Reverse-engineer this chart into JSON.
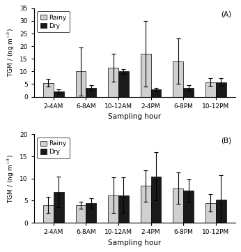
{
  "categories": [
    "2-4AM",
    "6-8AM",
    "10-12AM",
    "2-4PM",
    "6-8PM",
    "10-12PM"
  ],
  "subplot_A": {
    "label": "(A)",
    "rainy_values": [
      5.5,
      10.0,
      11.5,
      17.0,
      14.0,
      5.8
    ],
    "dry_values": [
      2.0,
      3.5,
      10.0,
      3.0,
      3.5,
      5.8
    ],
    "rainy_errors": [
      1.5,
      9.5,
      5.5,
      13.0,
      9.0,
      1.5
    ],
    "dry_errors": [
      0.8,
      1.0,
      1.0,
      0.5,
      1.0,
      1.5
    ],
    "ylim": [
      0,
      35
    ],
    "yticks": [
      0,
      5,
      10,
      15,
      20,
      25,
      30,
      35
    ],
    "ylabel": "TGM / (ng m-3)"
  },
  "subplot_B": {
    "label": "(B)",
    "rainy_values": [
      4.0,
      4.0,
      6.2,
      8.3,
      7.8,
      4.5
    ],
    "dry_values": [
      7.0,
      4.4,
      6.2,
      10.5,
      7.3,
      5.2
    ],
    "rainy_errors": [
      1.8,
      0.8,
      4.0,
      3.5,
      3.5,
      2.0
    ],
    "dry_errors": [
      3.5,
      1.2,
      4.0,
      5.5,
      2.5,
      5.5
    ],
    "ylim": [
      0,
      20
    ],
    "yticks": [
      0,
      5,
      10,
      15,
      20
    ],
    "ylabel": "TGM / (ng m-3)"
  },
  "xlabel": "Sampling hour",
  "rainy_color": "#d0d0d0",
  "dry_color": "#1a1a1a",
  "bar_width": 0.32,
  "legend_labels": [
    "Rainy",
    "Dry"
  ],
  "figsize": [
    3.46,
    3.61
  ],
  "dpi": 100
}
